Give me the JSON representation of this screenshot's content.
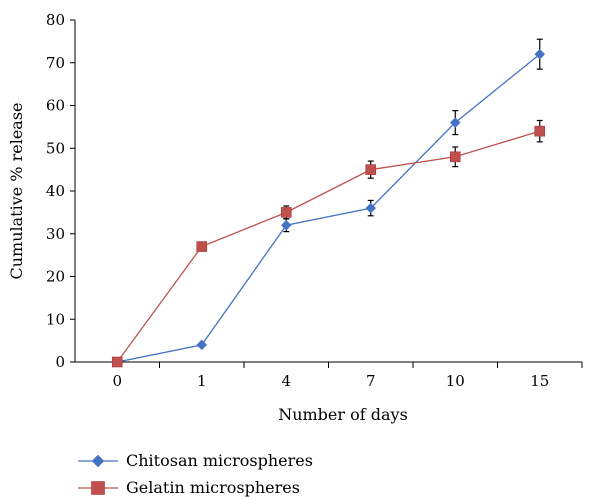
{
  "chart_data": {
    "type": "line",
    "categories": [
      "0",
      "1",
      "4",
      "7",
      "10",
      "15"
    ],
    "xlabel": "Number of days",
    "ylabel": "Cumulative % release",
    "ylim": [
      0,
      80
    ],
    "yticks": [
      "0",
      "10",
      "20",
      "30",
      "40",
      "50",
      "60",
      "70",
      "80"
    ],
    "grid": false,
    "legend_position": "bottom-left",
    "series": [
      {
        "name": "Chitosan  microspheres",
        "color": "#4472c4",
        "marker": "diamond",
        "values": [
          0,
          4,
          32,
          36,
          56,
          72
        ],
        "errors": [
          0,
          0,
          1.5,
          1.8,
          2.8,
          3.5
        ]
      },
      {
        "name": "Gelatin microspheres",
        "color": "#c0504d",
        "marker": "square",
        "values": [
          0,
          27,
          35,
          45,
          48,
          54
        ],
        "errors": [
          0,
          1.0,
          1.5,
          2.0,
          2.3,
          2.5
        ]
      }
    ]
  }
}
